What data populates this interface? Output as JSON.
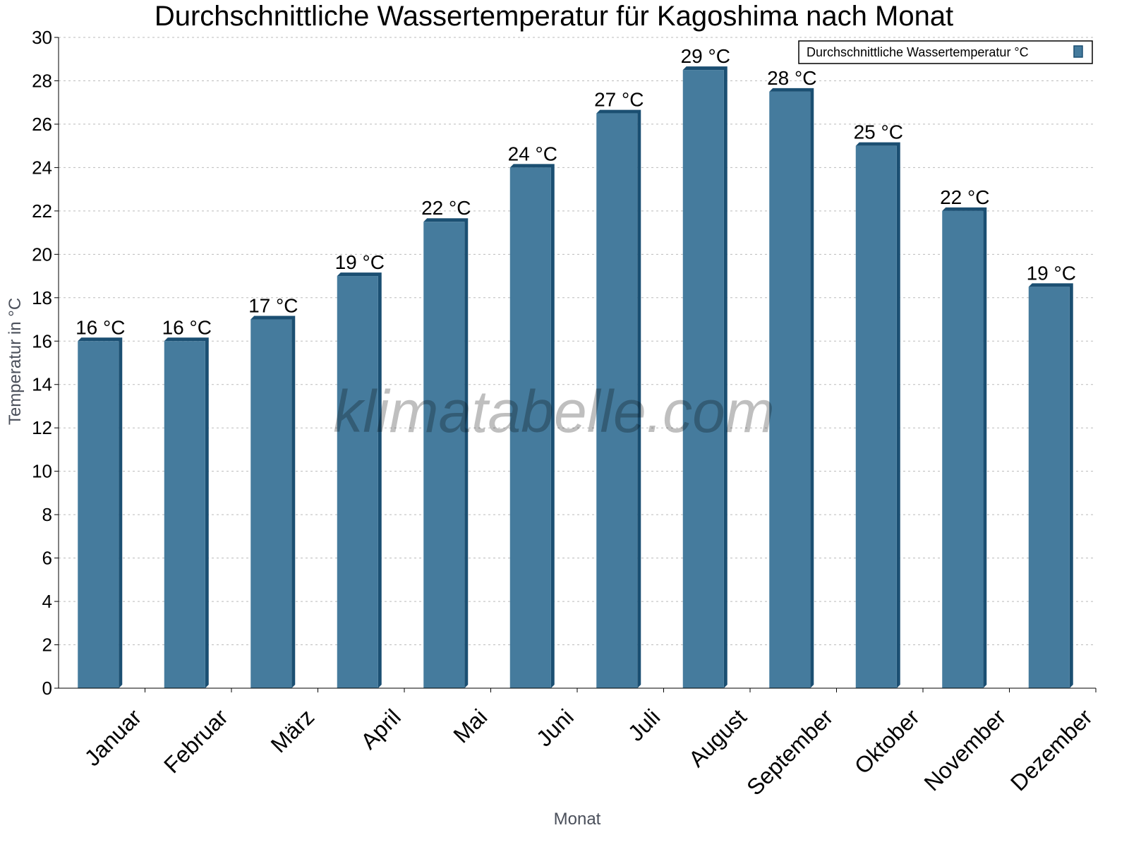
{
  "chart_data": {
    "type": "bar",
    "title": "Durchschnittliche Wassertemperatur für Kagoshima nach Monat",
    "xlabel": "Monat",
    "ylabel": "Temperatur in °C",
    "categories": [
      "Januar",
      "Februar",
      "März",
      "April",
      "Mai",
      "Juni",
      "Juli",
      "August",
      "September",
      "Oktober",
      "November",
      "Dezember"
    ],
    "series": [
      {
        "name": "Durchschnittliche Wassertemperatur °C",
        "values": [
          16,
          16,
          17,
          19,
          21.5,
          24,
          26.5,
          28.5,
          27.5,
          25,
          22,
          18.5
        ],
        "labels": [
          "16 °C",
          "16 °C",
          "17 °C",
          "19 °C",
          "22 °C",
          "24 °C",
          "27 °C",
          "29 °C",
          "28 °C",
          "25 °C",
          "22 °C",
          "19 °C"
        ]
      }
    ],
    "ylim": [
      0,
      30
    ],
    "yticks": [
      0,
      2,
      4,
      6,
      8,
      10,
      12,
      14,
      16,
      18,
      20,
      22,
      24,
      26,
      28,
      30
    ],
    "grid": true,
    "legend": "top-right",
    "colors": {
      "bar": "#457b9d",
      "bar_dark": "#1b4f72"
    }
  },
  "watermark": "klimatabelle.com"
}
